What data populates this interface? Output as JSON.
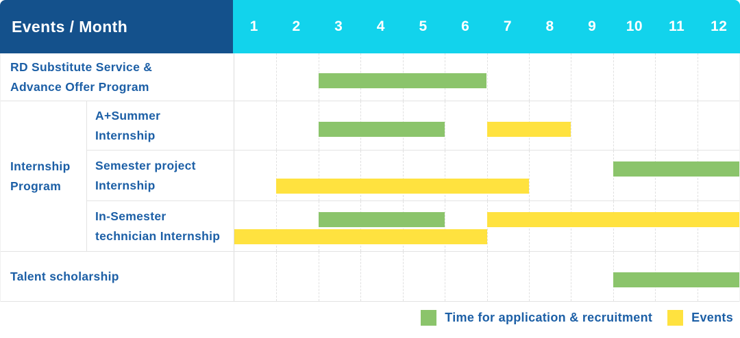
{
  "header": {
    "title": "Events / Month",
    "months": [
      "1",
      "2",
      "3",
      "4",
      "5",
      "6",
      "7",
      "8",
      "9",
      "10",
      "11",
      "12"
    ]
  },
  "group": {
    "label_lines": [
      "Internship",
      "Program"
    ]
  },
  "rows": [
    {
      "label_lines": [
        "RD Substitute Service &",
        "Advance Offer Program"
      ]
    },
    {
      "label_lines": [
        "A+Summer",
        "Internship"
      ]
    },
    {
      "label_lines": [
        "Semester project",
        "Internship"
      ]
    },
    {
      "label_lines": [
        "In-Semester",
        "technician Internship"
      ]
    },
    {
      "label_lines": [
        "Talent scholarship"
      ]
    }
  ],
  "legend": [
    {
      "kind": "application",
      "label": "Time for application & recruitment"
    },
    {
      "kind": "event",
      "label": "Events"
    }
  ],
  "colors": {
    "header_bg": "#14518C",
    "months_bg": "#12D3EC",
    "label_text": "#1C5FA6",
    "application": "#8BC46B",
    "event": "#FFE23F"
  },
  "chart_data": {
    "type": "table",
    "subtype": "gantt",
    "title": "Events / Month",
    "x_axis": {
      "label": "Month",
      "ticks": [
        1,
        2,
        3,
        4,
        5,
        6,
        7,
        8,
        9,
        10,
        11,
        12
      ],
      "range": [
        1,
        12
      ]
    },
    "legend": {
      "application": "Time for application & recruitment",
      "event": "Events"
    },
    "series": [
      {
        "event": "RD Substitute Service & Advance Offer Program",
        "group": null,
        "bars": [
          {
            "kind": "application",
            "start_month": 3,
            "end_month": 6,
            "line": 0
          }
        ]
      },
      {
        "event": "A+Summer Internship",
        "group": "Internship Program",
        "bars": [
          {
            "kind": "application",
            "start_month": 3,
            "end_month": 5,
            "line": 0
          },
          {
            "kind": "event",
            "start_month": 7,
            "end_month": 8,
            "line": 0
          }
        ]
      },
      {
        "event": "Semester project Internship",
        "group": "Internship Program",
        "bars": [
          {
            "kind": "application",
            "start_month": 10,
            "end_month": 12,
            "line": 0
          },
          {
            "kind": "event",
            "start_month": 2,
            "end_month": 7,
            "line": 1
          }
        ]
      },
      {
        "event": "In-Semester technician Internship",
        "group": "Internship Program",
        "bars": [
          {
            "kind": "application",
            "start_month": 3,
            "end_month": 5,
            "line": 0
          },
          {
            "kind": "event",
            "start_month": 7,
            "end_month": 12,
            "line": 0
          },
          {
            "kind": "event",
            "start_month": 1,
            "end_month": 6,
            "line": 1
          }
        ]
      },
      {
        "event": "Talent scholarship",
        "group": null,
        "bars": [
          {
            "kind": "application",
            "start_month": 10,
            "end_month": 12,
            "line": 0
          }
        ]
      }
    ]
  }
}
